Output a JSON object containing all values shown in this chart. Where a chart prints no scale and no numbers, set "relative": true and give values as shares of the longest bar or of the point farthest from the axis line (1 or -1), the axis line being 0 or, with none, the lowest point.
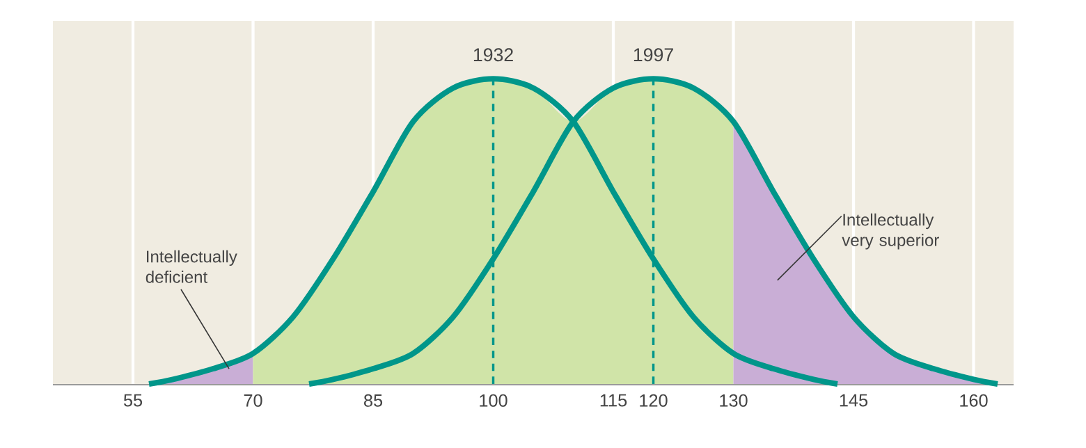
{
  "chart_data": {
    "type": "line",
    "relative": true,
    "xlim": [
      45,
      165
    ],
    "xticks": [
      55,
      70,
      85,
      100,
      115,
      120,
      130,
      145,
      160
    ],
    "grid": "x",
    "line_style": "solid",
    "marker": "none",
    "series": [
      {
        "type": "area",
        "color": "#c9aed6",
        "x": [
          57,
          60,
          65,
          70
        ],
        "values": [
          0,
          0.015,
          0.05,
          0.1
        ]
      },
      {
        "type": "area",
        "color": "#d0e4a8",
        "x": [
          70,
          75,
          80,
          85,
          90,
          95,
          100,
          105,
          110,
          115,
          120,
          125,
          130
        ],
        "values": [
          0.1,
          0.22,
          0.41,
          0.63,
          0.86,
          0.97,
          1,
          0.97,
          0.86,
          0.97,
          1,
          0.97,
          0.86
        ]
      },
      {
        "type": "area",
        "color": "#c9aed6",
        "x": [
          130,
          135,
          140,
          145,
          150,
          155,
          160,
          163
        ],
        "values": [
          0.86,
          0.63,
          0.41,
          0.22,
          0.1,
          0.05,
          0.015,
          0
        ]
      },
      {
        "name": "1932",
        "color": "#00968a",
        "x": [
          57,
          60,
          65,
          70,
          75,
          80,
          85,
          90,
          95,
          100,
          105,
          110,
          115,
          120,
          125,
          130,
          135,
          140,
          143
        ],
        "values": [
          0,
          0.015,
          0.05,
          0.1,
          0.22,
          0.41,
          0.63,
          0.86,
          0.97,
          1,
          0.97,
          0.86,
          0.63,
          0.41,
          0.22,
          0.1,
          0.05,
          0.015,
          0
        ]
      },
      {
        "name": "1997",
        "color": "#00968a",
        "x": [
          77,
          80,
          85,
          90,
          95,
          100,
          105,
          110,
          115,
          120,
          125,
          130,
          135,
          140,
          145,
          150,
          155,
          160,
          163
        ],
        "values": [
          0,
          0.015,
          0.05,
          0.1,
          0.22,
          0.41,
          0.63,
          0.86,
          0.97,
          1,
          0.97,
          0.86,
          0.63,
          0.41,
          0.22,
          0.1,
          0.05,
          0.015,
          0
        ]
      },
      {
        "color": "#00968a",
        "line_style": "dashed",
        "x": [
          100,
          100
        ],
        "values": [
          0,
          1
        ]
      },
      {
        "color": "#00968a",
        "line_style": "dashed",
        "x": [
          120,
          120
        ],
        "values": [
          0,
          1
        ]
      }
    ],
    "annotations": [
      "Intellectually deficient",
      "Intellectually very superior"
    ]
  }
}
